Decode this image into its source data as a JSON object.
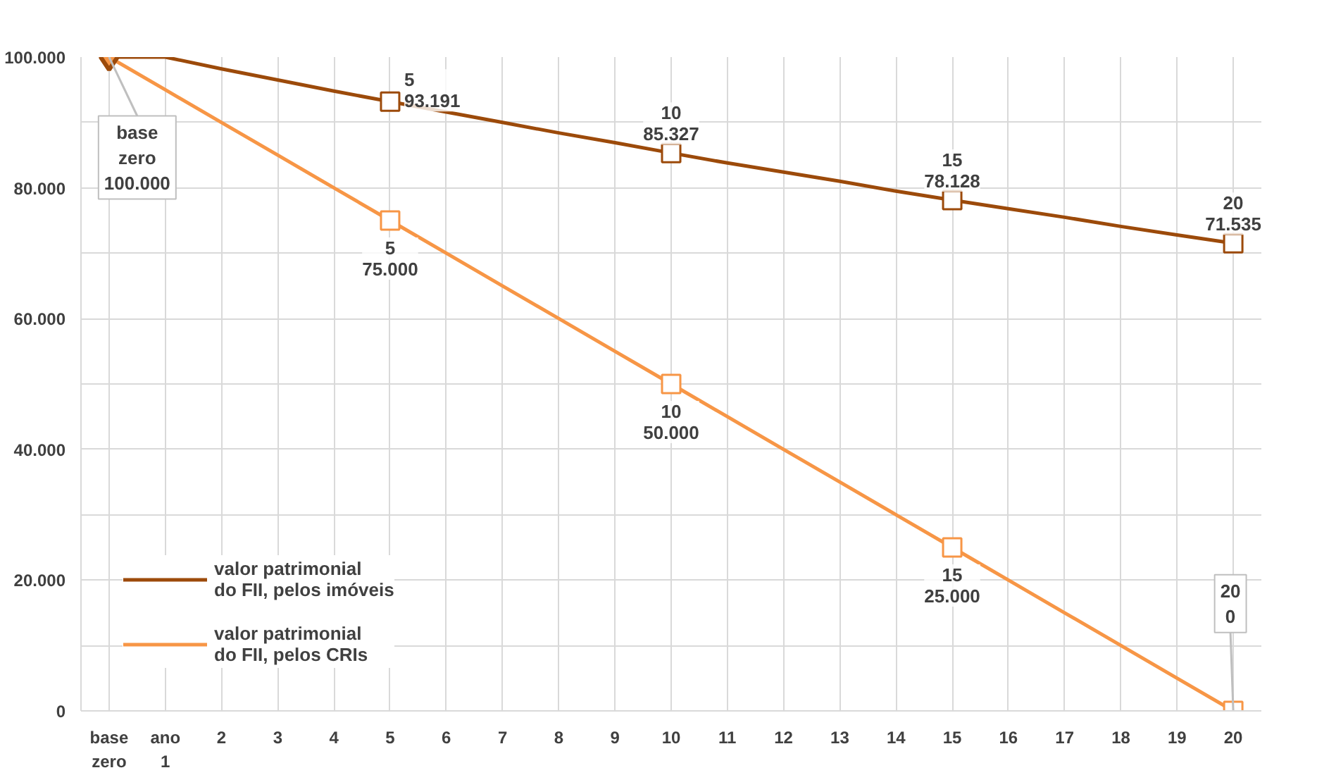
{
  "chart_data": {
    "type": "line",
    "categories": [
      "base\nzero",
      "ano\n1",
      "2",
      "3",
      "4",
      "5",
      "6",
      "7",
      "8",
      "9",
      "10",
      "11",
      "12",
      "13",
      "14",
      "15",
      "16",
      "17",
      "18",
      "19",
      "20"
    ],
    "series": [
      {
        "name": "valor patrimonial\ndo FII, pelos imóveis",
        "color": "#9c4a0a",
        "values": [
          100000,
          100000,
          98200,
          96500,
          94800,
          93191,
          91600,
          90000,
          88400,
          86900,
          85327,
          83800,
          82400,
          81000,
          79500,
          78128,
          76800,
          75500,
          74100,
          72800,
          71535
        ],
        "value_labels": [
          null,
          null,
          null,
          null,
          null,
          "5\n93.191",
          null,
          null,
          null,
          null,
          "10\n85.327",
          null,
          null,
          null,
          null,
          "15\n78.128",
          null,
          null,
          null,
          null,
          "20\n71.535"
        ]
      },
      {
        "name": "valor patrimonial\ndo FII, pelos CRIs",
        "color": "#f79646",
        "values": [
          100000,
          95000,
          90000,
          85000,
          80000,
          75000,
          70000,
          65000,
          60000,
          55000,
          50000,
          45000,
          40000,
          35000,
          30000,
          25000,
          20000,
          15000,
          10000,
          5000,
          0
        ],
        "value_labels": [
          null,
          null,
          null,
          null,
          null,
          "5\n75.000",
          null,
          null,
          null,
          null,
          "10\n50.000",
          null,
          null,
          null,
          null,
          "15\n25.000",
          null,
          null,
          null,
          null,
          "20\n0"
        ]
      }
    ],
    "annotations": [
      {
        "text": "base\nzero\n100.000",
        "x": "base\nzero",
        "y": 100000
      }
    ],
    "ylim": [
      0,
      100000
    ],
    "yticks": [
      0,
      {
        "value": 10000,
        "label": null
      },
      {
        "value": 20000,
        "label": "20.000"
      },
      {
        "value": 30000,
        "label": null
      },
      {
        "value": 40000,
        "label": "40.000"
      },
      {
        "value": 50000,
        "label": null
      },
      {
        "value": 60000,
        "label": "60.000"
      },
      {
        "value": 70000,
        "label": null
      },
      {
        "value": 80000,
        "label": "80.000"
      },
      {
        "value": 90000,
        "label": null
      },
      {
        "value": 100000,
        "label": "100.000"
      }
    ],
    "grid": true,
    "legend": "bottom left",
    "line_style": "solid"
  }
}
